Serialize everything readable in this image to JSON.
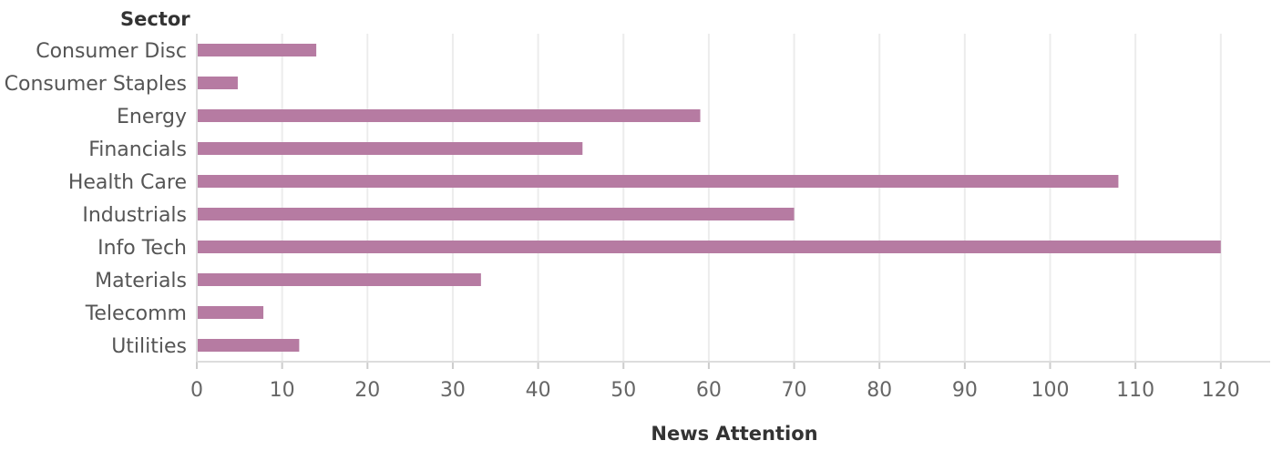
{
  "chart_data": {
    "type": "bar",
    "orientation": "horizontal",
    "categories": [
      "Consumer Disc",
      "Consumer Staples",
      "Energy",
      "Financials",
      "Health Care",
      "Industrials",
      "Info Tech",
      "Materials",
      "Telecomm",
      "Utilities"
    ],
    "values": [
      14,
      4.8,
      59,
      45.2,
      108,
      70,
      120,
      33.3,
      7.8,
      12
    ],
    "ylabel": "Sector",
    "xlabel": "News Attention",
    "xlim": [
      0,
      126
    ],
    "xticks": [
      0,
      10,
      20,
      30,
      40,
      50,
      60,
      70,
      80,
      90,
      100,
      110,
      120
    ],
    "grid": "vertical",
    "legend": "none",
    "bar_color": "#b67ba2"
  }
}
